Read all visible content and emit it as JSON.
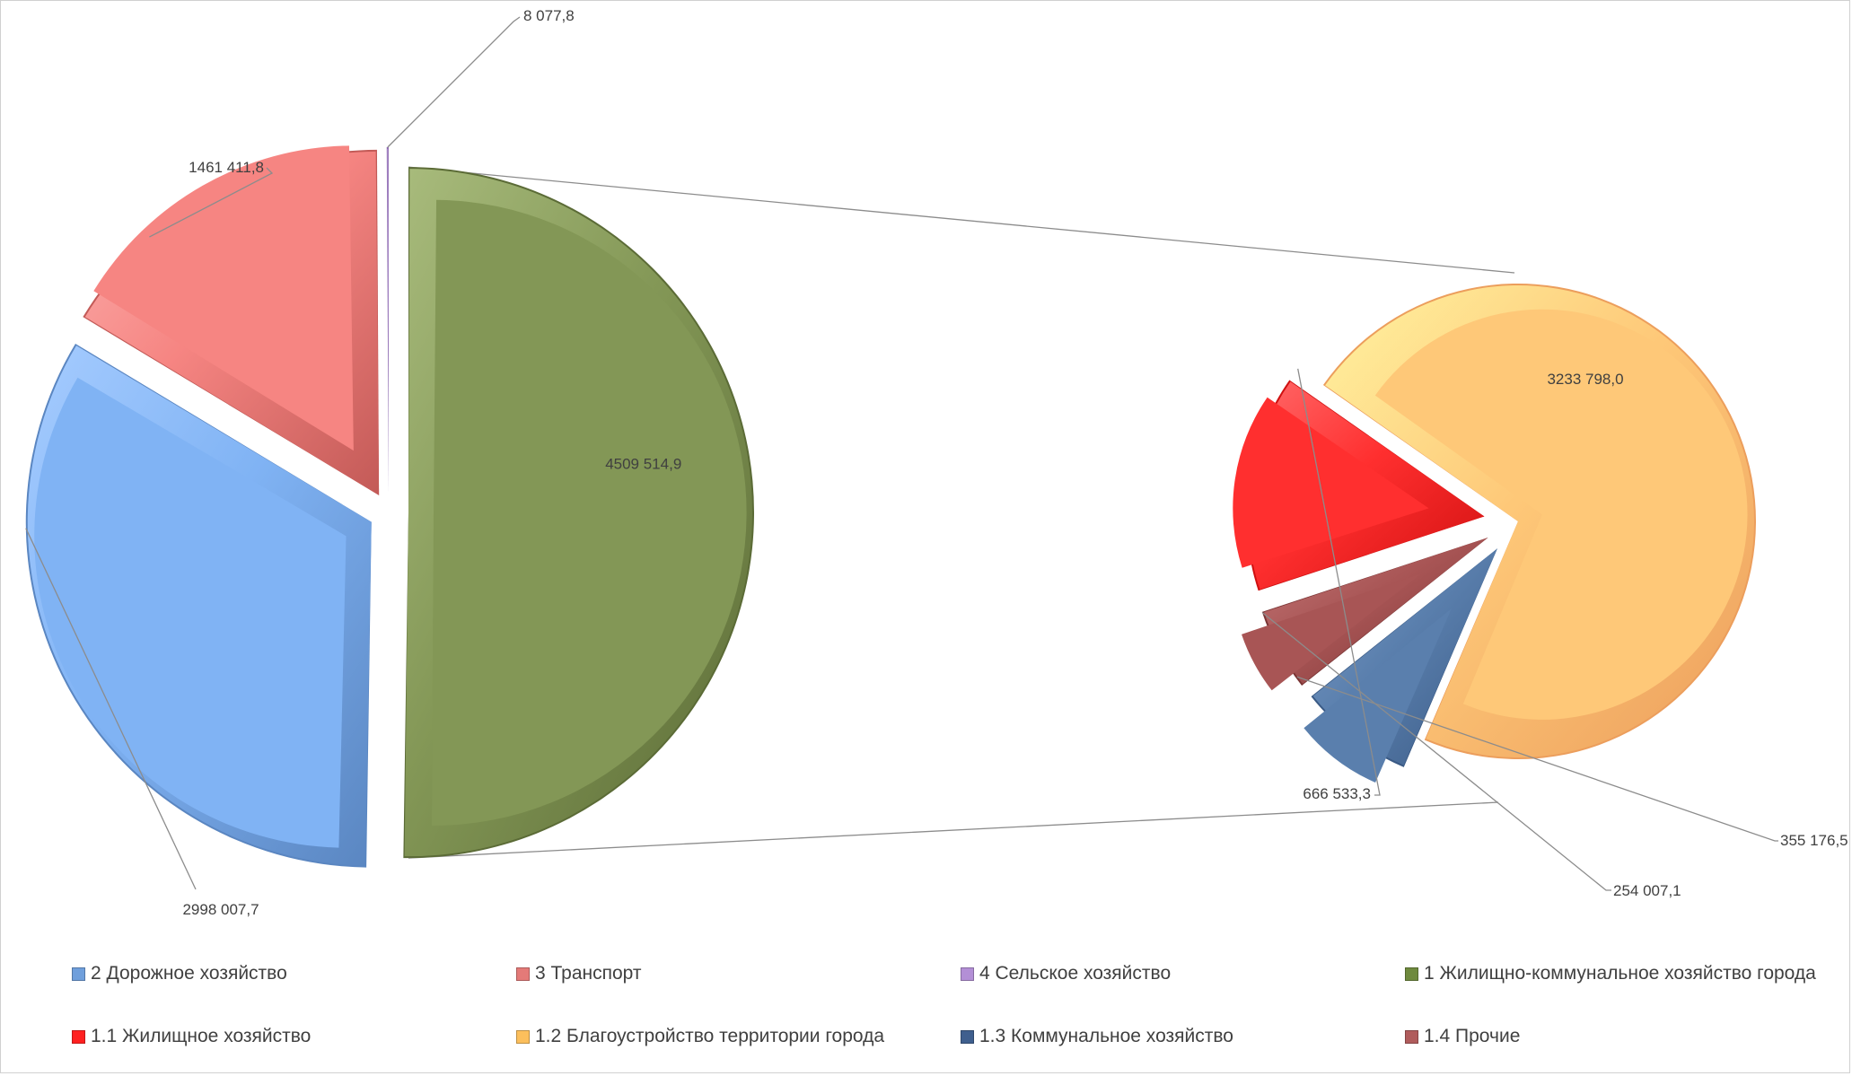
{
  "chart_data": {
    "type": "pie-of-pie",
    "main_pie": {
      "slices": [
        {
          "label": "1 Жилищно-коммунальное  хозяйство города",
          "value": 4509514.9,
          "value_text": "4509 514,9",
          "color": "#839756",
          "dark": "#5b6b36",
          "light": "#a8bb7c"
        },
        {
          "label": "2 Дорожное хозяйство",
          "value": 2998007.7,
          "value_text": "2998 007,7",
          "color": "#80b3f4",
          "dark": "#5a86c1",
          "light": "#a6ccff"
        },
        {
          "label": "3 Транспорт",
          "value": 1461411.8,
          "value_text": "1461 411,8",
          "color": "#f68582",
          "dark": "#c35a57",
          "light": "#fbb0ae"
        },
        {
          "label": "4 Сельское хозяйство",
          "value": 8077.8,
          "value_text": "8 077,8",
          "color": "#b38fd6",
          "dark": "#8d6bb0",
          "light": "#cdb2e8"
        }
      ]
    },
    "secondary_pie": {
      "source": "1 Жилищно-коммунальное  хозяйство города",
      "slices": [
        {
          "label": "1.2 Благоустройство территории города",
          "value": 3233798.0,
          "value_text": "3233 798,0",
          "color": "#fec878",
          "dark": "#ec9e5c",
          "light": "#fff3a0"
        },
        {
          "label": "1.3 Коммунальное хозяйство",
          "value": 355176.5,
          "value_text": "355 176,5",
          "color": "#5a7fad",
          "dark": "#3a5a85",
          "light": "#7b9cc6"
        },
        {
          "label": "1.4 Прочие",
          "value": 254007.1,
          "value_text": "254 007,1",
          "color": "#a85555",
          "dark": "#7a3434",
          "light": "#c47777"
        },
        {
          "label": "1.1 Жилищное хозяйство",
          "value": 666533.3,
          "value_text": "666 533,3",
          "color": "#ff2f2f",
          "dark": "#d01010",
          "light": "#ff6a6a"
        }
      ]
    },
    "legend": {
      "position": "bottom",
      "items": [
        {
          "label": "2 Дорожное хозяйство",
          "color": "#6f9fdc"
        },
        {
          "label": "3 Транспорт",
          "color": "#e47a78"
        },
        {
          "label": "4 Сельское хозяйство",
          "color": "#b38fd6"
        },
        {
          "label": "1 Жилищно-коммунальное  хозяйство города",
          "color": "#6f8a3e"
        },
        {
          "label": "1.1 Жилищное хозяйство",
          "color": "#ff2020"
        },
        {
          "label": "1.2 Благоустройство территории города",
          "color": "#fcbf5c"
        },
        {
          "label": "1.3 Коммунальное хозяйство",
          "color": "#3f5f8e"
        },
        {
          "label": "1.4 Прочие",
          "color": "#b05c5c"
        }
      ]
    }
  }
}
